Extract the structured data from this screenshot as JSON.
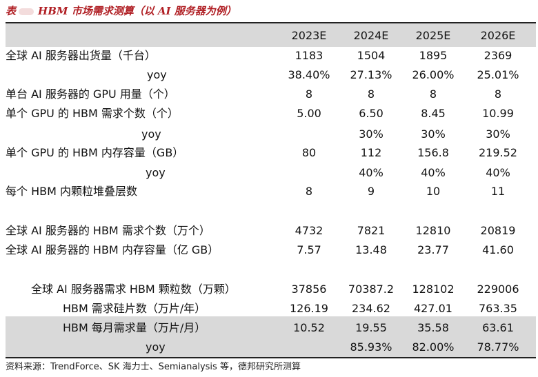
{
  "title": "HBM 市场需求测算（以 AI 服务器为例）",
  "title_prefix": "表",
  "columns": [
    "2023E",
    "2024E",
    "2025E",
    "2026E"
  ],
  "rows": [
    {
      "label": "全球 AI 服务器出货量（千台）",
      "values": [
        "1183",
        "1504",
        "1895",
        "2369"
      ]
    },
    {
      "label": "yoy",
      "values": [
        "38.40%",
        "27.13%",
        "26.00%",
        "25.01%"
      ]
    },
    {
      "label": "单台 AI 服务器的 GPU 用量（个）",
      "values": [
        "8",
        "8",
        "8",
        "8"
      ]
    },
    {
      "label": "单个 GPU 的 HBM 需求个数（个）",
      "values": [
        "5.00",
        "6.50",
        "8.45",
        "10.99"
      ]
    },
    {
      "label": "yoy",
      "values": [
        "",
        "30%",
        "30%",
        "30%"
      ]
    },
    {
      "label": "单个 GPU 的 HBM 内存容量（GB）",
      "values": [
        "80",
        "112",
        "156.8",
        "219.52"
      ]
    },
    {
      "label": "yoy",
      "values": [
        "",
        "40%",
        "40%",
        "40%"
      ]
    },
    {
      "label": "每个 HBM 内颗粒堆叠层数",
      "values": [
        "8",
        "9",
        "10",
        "11"
      ]
    },
    {
      "label": "全球 AI 服务器的 HBM 需求个数（万个）",
      "values": [
        "4732",
        "7821",
        "12810",
        "20819"
      ]
    },
    {
      "label": "全球 AI 服务器的 HBM 内存容量（亿 GB）",
      "values": [
        "7.57",
        "13.48",
        "23.77",
        "41.60"
      ]
    },
    {
      "label": "全球 AI 服务器需求 HBM 颗粒数（万颗）",
      "values": [
        "37856",
        "70387.2",
        "128102",
        "229006"
      ]
    },
    {
      "label": "HBM 需求硅片数（万片/年）",
      "values": [
        "126.19",
        "234.62",
        "427.01",
        "763.35"
      ]
    },
    {
      "label": "HBM 每月需求量（万片/月）",
      "values": [
        "10.52",
        "19.55",
        "35.58",
        "63.61"
      ]
    },
    {
      "label": "yoy",
      "values": [
        "",
        "85.93%",
        "82.00%",
        "78.77%"
      ]
    }
  ],
  "source": "资料来源：TrendForce、SK 海力士、Semianalysis 等，德邦研究所测算",
  "colors": {
    "title": "#b01f24",
    "band": "#d9d9d9",
    "rule": "#222222"
  }
}
